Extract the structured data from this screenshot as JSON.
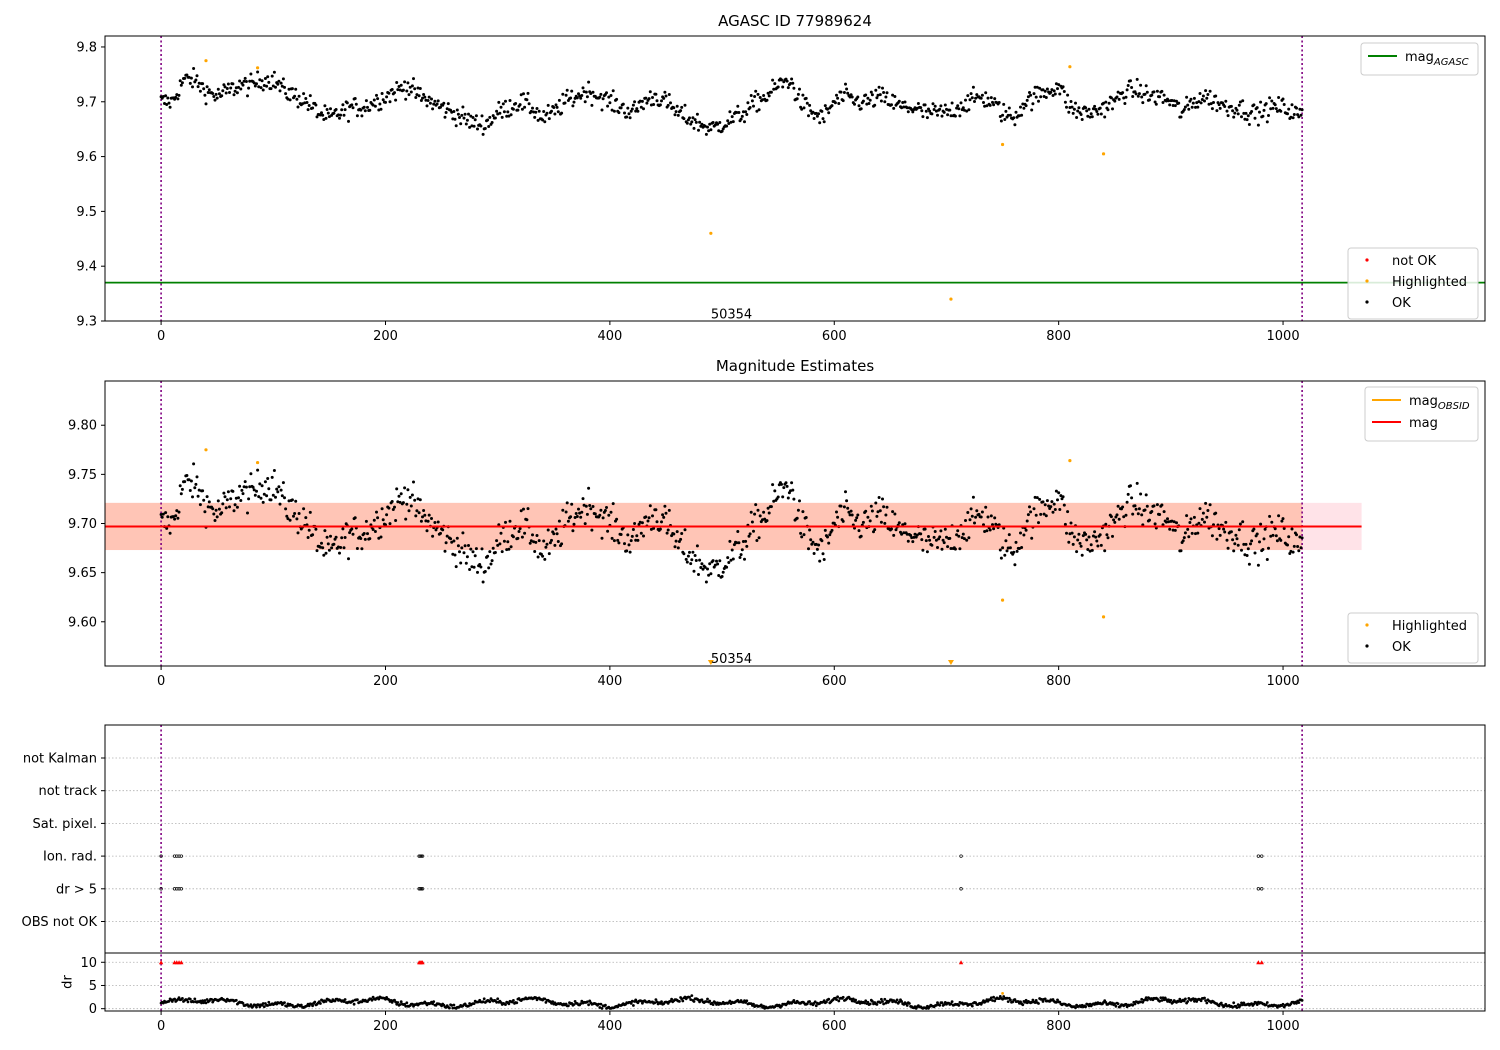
{
  "chart_data": [
    {
      "type": "scatter",
      "title": "AGASC ID 77989624",
      "xlim": [
        -50,
        1180
      ],
      "ylim": [
        9.3,
        9.82
      ],
      "xticks": [
        0,
        200,
        400,
        600,
        800,
        1000
      ],
      "yticks": [
        9.3,
        9.4,
        9.5,
        9.6,
        9.7,
        9.8
      ],
      "ytick_labels": [
        "9.3",
        "9.4",
        "9.5",
        "9.6",
        "9.7",
        "9.8"
      ],
      "vlines": [
        0,
        1017
      ],
      "hline": {
        "name": "mag",
        "subscript": "AGASC",
        "y": 9.37,
        "color": "#008000"
      },
      "annotation": {
        "text": "50354",
        "x": 490,
        "y": 9.31
      },
      "legend_lines": [
        {
          "name": "mag",
          "subscript": "AGASC",
          "color": "#008000"
        }
      ],
      "legend_points": [
        {
          "name": "not OK",
          "color": "#ff0000"
        },
        {
          "name": "Highlighted",
          "color": "#ffa500"
        },
        {
          "name": "OK",
          "color": "#000000"
        }
      ],
      "ok_trend": {
        "x_start": 0,
        "x_end": 1017,
        "step": 10,
        "y": [
          9.7,
          9.7,
          9.74,
          9.74,
          9.72,
          9.71,
          9.72,
          9.73,
          9.73,
          9.74,
          9.74,
          9.72,
          9.71,
          9.7,
          9.68,
          9.67,
          9.68,
          9.69,
          9.69,
          9.7,
          9.71,
          9.72,
          9.73,
          9.71,
          9.7,
          9.69,
          9.68,
          9.67,
          9.66,
          9.66,
          9.68,
          9.69,
          9.7,
          9.69,
          9.67,
          9.68,
          9.7,
          9.71,
          9.72,
          9.71,
          9.7,
          9.69,
          9.68,
          9.7,
          9.71,
          9.7,
          9.68,
          9.67,
          9.66,
          9.65,
          9.66,
          9.67,
          9.68,
          9.7,
          9.71,
          9.73,
          9.74,
          9.7,
          9.68,
          9.67,
          9.7,
          9.71,
          9.7,
          9.7,
          9.71,
          9.7,
          9.69,
          9.69,
          9.68,
          9.68,
          9.68,
          9.69,
          9.7,
          9.71,
          9.7,
          9.68,
          9.67,
          9.7,
          9.71,
          9.72,
          9.73,
          9.69,
          9.68,
          9.68,
          9.69,
          9.7,
          9.72,
          9.72,
          9.71,
          9.71,
          9.7,
          9.68,
          9.7,
          9.71,
          9.7,
          9.69,
          9.69,
          9.68,
          9.68,
          9.69,
          9.69,
          9.68
        ]
      },
      "highlighted": [
        {
          "x": 40,
          "y": 9.775
        },
        {
          "x": 86,
          "y": 9.762
        },
        {
          "x": 490,
          "y": 9.46
        },
        {
          "x": 704,
          "y": 9.34
        },
        {
          "x": 750,
          "y": 9.622
        },
        {
          "x": 810,
          "y": 9.764
        },
        {
          "x": 840,
          "y": 9.605
        }
      ]
    },
    {
      "type": "scatter",
      "title": "Magnitude Estimates",
      "xlim": [
        -50,
        1180
      ],
      "ylim": [
        9.555,
        9.845
      ],
      "xticks": [
        0,
        200,
        400,
        600,
        800,
        1000
      ],
      "yticks": [
        9.6,
        9.65,
        9.7,
        9.75,
        9.8
      ],
      "ytick_labels": [
        "9.60",
        "9.65",
        "9.70",
        "9.75",
        "9.80"
      ],
      "vlines": [
        0,
        1017
      ],
      "mag_line": {
        "name": "mag",
        "y": 9.697,
        "x_start": -50,
        "x_end": 1070,
        "color": "#ff0000"
      },
      "bands": [
        {
          "x_start": -50,
          "x_end": 1070,
          "y_low": 9.673,
          "y_high": 9.721,
          "color": "#ffc0cb"
        },
        {
          "x_start": -50,
          "x_end": 1017,
          "y_low": 9.673,
          "y_high": 9.721,
          "color": "#ffa07a"
        }
      ],
      "annotation": {
        "text": "50354",
        "x": 490,
        "y": 9.562
      },
      "out_of_range_markers": [
        {
          "x": 490
        },
        {
          "x": 704
        }
      ],
      "legend_lines": [
        {
          "name": "mag",
          "subscript": "OBSID",
          "color": "#ffa500"
        },
        {
          "name": "mag",
          "subscript": "",
          "color": "#ff0000"
        }
      ],
      "legend_points": [
        {
          "name": "Highlighted",
          "color": "#ffa500"
        },
        {
          "name": "OK",
          "color": "#000000"
        }
      ],
      "highlighted": [
        {
          "x": 40,
          "y": 9.775
        },
        {
          "x": 86,
          "y": 9.762
        },
        {
          "x": 750,
          "y": 9.622
        },
        {
          "x": 810,
          "y": 9.764
        },
        {
          "x": 840,
          "y": 9.605
        }
      ]
    },
    {
      "type": "scatter",
      "title": "",
      "xlim": [
        -50,
        1180
      ],
      "xticks": [
        0,
        200,
        400,
        600,
        800,
        1000
      ],
      "vlines": [
        0,
        1017
      ],
      "flag_rows": [
        "not Kalman",
        "not track",
        "Sat. pixel.",
        "Ion. rad.",
        "dr > 5",
        "OBS not OK"
      ],
      "flag_points": [
        {
          "row": "Ion. rad.",
          "x": [
            0,
            12,
            14,
            16,
            18,
            230,
            231,
            232,
            233,
            713,
            978,
            981
          ]
        },
        {
          "row": "dr > 5",
          "x": [
            0,
            12,
            14,
            16,
            18,
            230,
            231,
            232,
            233,
            713,
            978,
            981
          ]
        }
      ],
      "dr_ylabel": "dr",
      "dr_ylim": [
        -0.5,
        12
      ],
      "dr_yticks": [
        0,
        5,
        10
      ],
      "dr_highlighted": [
        {
          "x": 750,
          "y": 3.3
        }
      ],
      "dr_clipped": [
        0,
        12,
        14,
        16,
        18,
        230,
        231,
        232,
        233,
        713,
        978,
        981
      ]
    }
  ]
}
